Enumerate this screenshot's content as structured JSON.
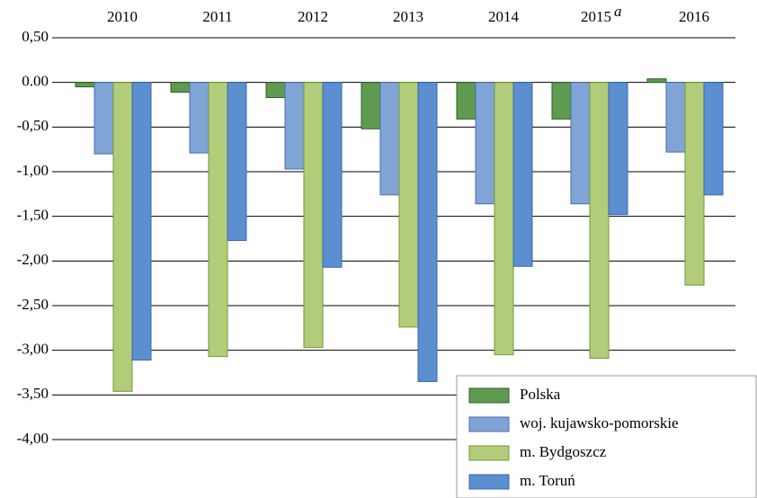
{
  "chart_data": {
    "type": "bar",
    "categories": [
      "2010",
      "2011",
      "2012",
      "2013",
      "2014",
      "2015",
      "2016"
    ],
    "category_superscripts": [
      null,
      null,
      null,
      null,
      null,
      "a",
      null
    ],
    "series": [
      {
        "name": "Polska",
        "color": "#5e9a4f",
        "border": "#2f5e2a",
        "values": [
          -0.05,
          -0.11,
          -0.17,
          -0.52,
          -0.41,
          -0.41,
          0.04
        ]
      },
      {
        "name": "woj. kujawsko-pomorskie",
        "color": "#80a4d6",
        "border": "#4a6fa8",
        "values": [
          -0.8,
          -0.79,
          -0.97,
          -1.26,
          -1.36,
          -1.36,
          -0.78
        ]
      },
      {
        "name": "m. Bydgoszcz",
        "color": "#b3cc7a",
        "border": "#6f9a33",
        "values": [
          -3.46,
          -3.07,
          -2.97,
          -2.74,
          -3.05,
          -3.09,
          -2.27
        ]
      },
      {
        "name": "m. Toruń",
        "color": "#5b8fd0",
        "border": "#3a67a8",
        "values": [
          -3.11,
          -1.77,
          -2.07,
          -3.35,
          -2.06,
          -1.48,
          -1.26
        ]
      }
    ],
    "ylim": [
      -4,
      0.5
    ],
    "yticks": [
      {
        "value": 0.5,
        "label": "0,50"
      },
      {
        "value": 0,
        "label": "0.00"
      },
      {
        "value": -0.5,
        "label": "-0,50"
      },
      {
        "value": -1,
        "label": "-1,00"
      },
      {
        "value": -1.5,
        "label": "-1,50"
      },
      {
        "value": -2,
        "label": "-2,00"
      },
      {
        "value": -2.5,
        "label": "-2,50"
      },
      {
        "value": -3,
        "label": "-3,00"
      },
      {
        "value": -3.5,
        "label": "-3,50"
      },
      {
        "value": -4,
        "label": "-4,00"
      }
    ],
    "grid": true,
    "legend": "lower right"
  }
}
